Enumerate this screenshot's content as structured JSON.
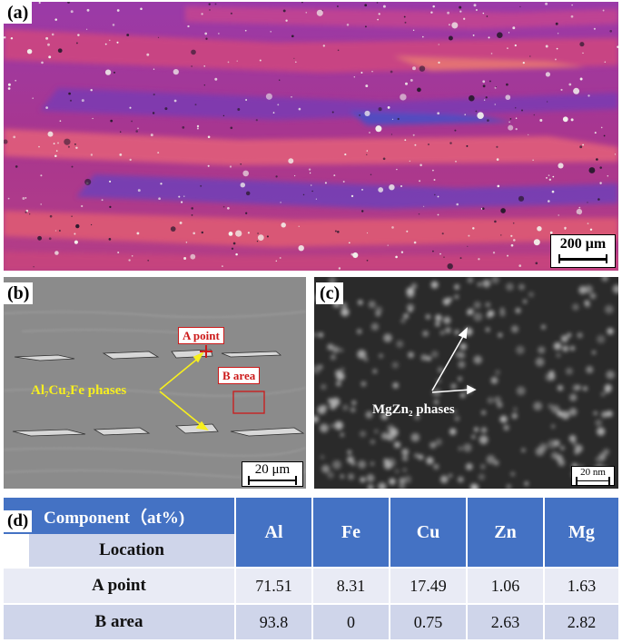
{
  "panel_a": {
    "label": "(a)",
    "scale_label": "200 μm"
  },
  "panel_b": {
    "label": "(b)",
    "scale_label": "20 μm",
    "annotation_point": "A point",
    "annotation_area": "B area",
    "phase_label": "Al₇Cu₂Fe phases"
  },
  "panel_c": {
    "label": "(c)",
    "scale_label": "20 nm",
    "phase_label": "MgZn₂ phases"
  },
  "panel_d": {
    "label": "(d)",
    "header_component": "Component（at%)",
    "header_location": "Location",
    "columns": [
      "Al",
      "Fe",
      "Cu",
      "Zn",
      "Mg"
    ],
    "rows": [
      {
        "location": "A point",
        "values": [
          "71.51",
          "8.31",
          "17.49",
          "1.06",
          "1.63"
        ]
      },
      {
        "location": "B area",
        "values": [
          "93.8",
          "0",
          "0.75",
          "2.63",
          "2.82"
        ]
      }
    ]
  },
  "colors": {
    "header_blue": "#4472c4",
    "row_light": "#e9ebf5",
    "row_mid": "#cfd5ea",
    "annotation_red": "#cc1a1a",
    "annotation_yellow": "#f7ef1e"
  }
}
